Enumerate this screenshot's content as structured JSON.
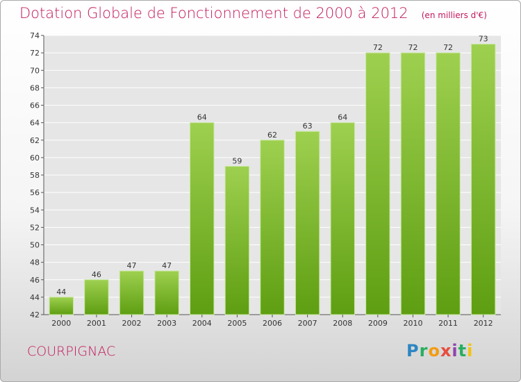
{
  "header": {
    "title": "Dotation Globale de Fonctionnement de 2000 à 2012",
    "subtitle": "(en milliers d'€)"
  },
  "footer": {
    "commune": "COURPIGNAC",
    "logo": "Proxiti"
  },
  "colors": {
    "title": "#c2185b",
    "bar_top": "#9ed04f",
    "bar_bottom": "#5e9e12",
    "grid": "#ffffff"
  },
  "chart_data": {
    "type": "bar",
    "title": "Dotation Globale de Fonctionnement de 2000 à 2012",
    "subtitle": "(en milliers d'€)",
    "categories": [
      "2000",
      "2001",
      "2002",
      "2003",
      "2004",
      "2005",
      "2006",
      "2007",
      "2008",
      "2009",
      "2010",
      "2011",
      "2012"
    ],
    "values": [
      44,
      46,
      47,
      47,
      64,
      59,
      62,
      63,
      64,
      72,
      72,
      72,
      73
    ],
    "ylim": [
      42,
      74
    ],
    "yticks": [
      42,
      44,
      46,
      48,
      50,
      52,
      54,
      56,
      58,
      60,
      62,
      64,
      66,
      68,
      70,
      72,
      74
    ],
    "grid": true,
    "xlabel": "",
    "ylabel": ""
  }
}
